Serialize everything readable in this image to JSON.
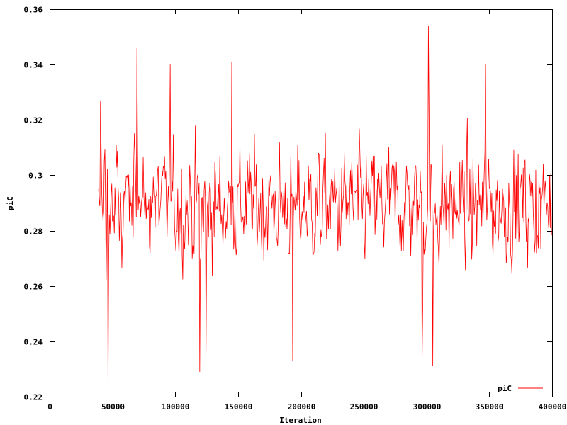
{
  "chart_data": {
    "type": "line",
    "title": "",
    "xlabel": "Iteration",
    "ylabel": "piC",
    "xlim": [
      0,
      400000
    ],
    "ylim": [
      0.22,
      0.36
    ],
    "x_ticks": [
      0,
      50000,
      100000,
      150000,
      200000,
      250000,
      300000,
      350000,
      400000
    ],
    "x_tick_labels": [
      "0",
      "50000",
      "100000",
      "150000",
      "200000",
      "250000",
      "300000",
      "350000",
      "400000"
    ],
    "y_ticks": [
      0.22,
      0.24,
      0.26,
      0.28,
      0.3,
      0.32,
      0.34,
      0.36
    ],
    "y_tick_labels": [
      "0.22",
      "0.24",
      "0.26",
      "0.28",
      "0.3",
      "0.32",
      "0.34",
      "0.36"
    ],
    "grid": false,
    "legend": {
      "position": "bottom-right"
    },
    "series": [
      {
        "name": "piC",
        "color": "#ff0000",
        "x_start": 39000,
        "x_end": 400000,
        "x_step": 500,
        "mean": 0.289,
        "min_value": 0.223,
        "max_value": 0.354,
        "notable_points": [
          {
            "x": 40500,
            "y": 0.327
          },
          {
            "x": 46500,
            "y": 0.223
          },
          {
            "x": 69500,
            "y": 0.346
          },
          {
            "x": 96000,
            "y": 0.34
          },
          {
            "x": 119500,
            "y": 0.229
          },
          {
            "x": 124500,
            "y": 0.236
          },
          {
            "x": 145000,
            "y": 0.341
          },
          {
            "x": 193500,
            "y": 0.233
          },
          {
            "x": 296500,
            "y": 0.233
          },
          {
            "x": 301500,
            "y": 0.354
          },
          {
            "x": 305000,
            "y": 0.231
          },
          {
            "x": 347000,
            "y": 0.34
          }
        ]
      }
    ]
  }
}
